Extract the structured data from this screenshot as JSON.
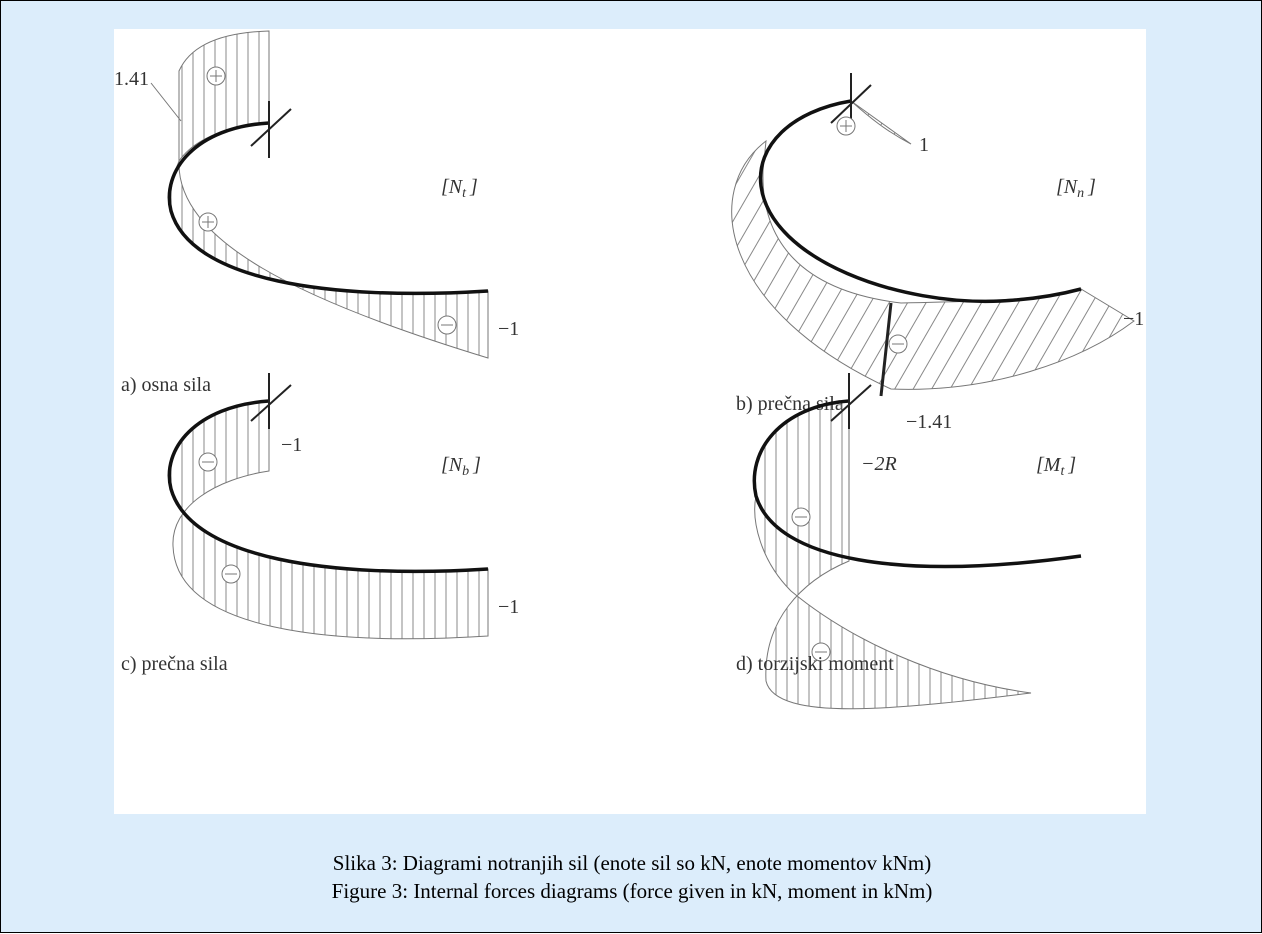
{
  "figure": {
    "panels": [
      {
        "caption": "a) osna sila",
        "symbol": {
          "open": "[N",
          "sub": "t",
          "close": "]"
        },
        "labels": [
          "1.41",
          "−1"
        ]
      },
      {
        "caption": "b) prečna sila",
        "symbol": {
          "open": "[N",
          "sub": "n",
          "close": "]"
        },
        "labels": [
          "1",
          "−1",
          "−1.41"
        ]
      },
      {
        "caption": "c) prečna sila",
        "symbol": {
          "open": "[N",
          "sub": "b",
          "close": "]"
        },
        "labels": [
          "−1",
          "−1"
        ]
      },
      {
        "caption": "d) torzijski moment",
        "symbol": {
          "open": "[M",
          "sub": "t",
          "close": "]"
        },
        "labels": [
          "−2R"
        ]
      }
    ],
    "caption": [
      "Slika 3: Diagrami notranjih sil (enote sil so kN, enote momentov kNm)",
      "Figure 3: Internal forces diagrams (force given in kN, moment in kNm)"
    ]
  }
}
